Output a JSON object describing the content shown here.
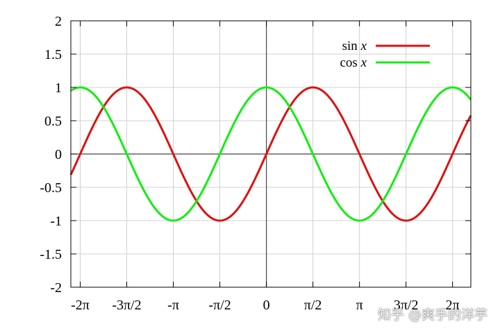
{
  "chart_data": {
    "type": "line",
    "xlim": [
      -6.6,
      6.9
    ],
    "ylim": [
      -2,
      2
    ],
    "x_ticks": [
      {
        "value": -6.283185,
        "label": "-2π"
      },
      {
        "value": -4.712389,
        "label": "-3π/2"
      },
      {
        "value": -3.141593,
        "label": "-π"
      },
      {
        "value": -1.570796,
        "label": "-π/2"
      },
      {
        "value": 0,
        "label": "0"
      },
      {
        "value": 1.570796,
        "label": "π/2"
      },
      {
        "value": 3.141593,
        "label": "π"
      },
      {
        "value": 4.712389,
        "label": "3π/2"
      },
      {
        "value": 6.283185,
        "label": "2π"
      }
    ],
    "y_ticks": [
      {
        "value": 2,
        "label": "2"
      },
      {
        "value": 1.5,
        "label": "1.5"
      },
      {
        "value": 1,
        "label": "1"
      },
      {
        "value": 0.5,
        "label": "0.5"
      },
      {
        "value": 0,
        "label": "0"
      },
      {
        "value": -0.5,
        "label": "-0.5"
      },
      {
        "value": -1,
        "label": "-1"
      },
      {
        "value": -1.5,
        "label": "-1.5"
      },
      {
        "value": -2,
        "label": "-2"
      }
    ],
    "grid": true,
    "legend_position": "top-right",
    "series": [
      {
        "name": "sin x",
        "function": "sin",
        "color": "#dd1111"
      },
      {
        "name": "cos x",
        "function": "cos",
        "color": "#11ee11"
      }
    ]
  },
  "watermark": "知乎 @爽手的洋芋"
}
